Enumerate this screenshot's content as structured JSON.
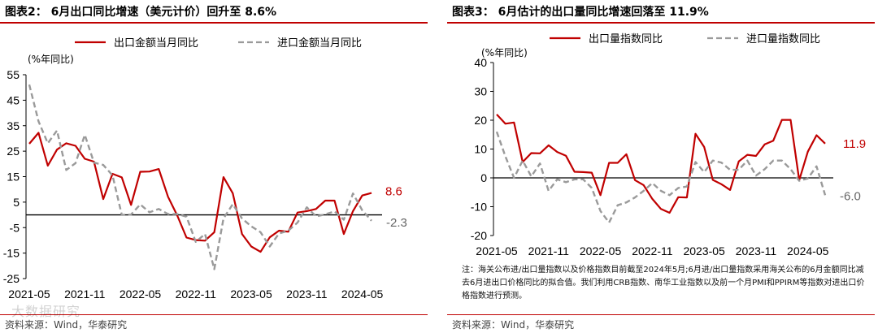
{
  "left": {
    "title": "图表2：  6月出口同比增速（美元计价）回升至 8.6%",
    "unit": "(%年同比)",
    "source": "资料来源：Wind，华泰研究",
    "chart_data": {
      "type": "line",
      "ylim": [
        -25,
        55
      ],
      "yticks": [
        -25,
        -15,
        -5,
        5,
        15,
        25,
        35,
        45,
        55
      ],
      "xticks": [
        "2021-05",
        "2021-11",
        "2022-05",
        "2022-11",
        "2023-05",
        "2023-11",
        "2024-05"
      ],
      "xtick_index": [
        0,
        6,
        12,
        18,
        24,
        30,
        36
      ],
      "legend_position": "top-center",
      "series": [
        {
          "name": "出口金额当月同比",
          "color": "#c00000",
          "dashed": false,
          "end_label": "8.6",
          "values": [
            27.9,
            32.2,
            19.3,
            25.6,
            28.1,
            27.1,
            22.0,
            20.9,
            6.2,
            16.1,
            14.7,
            3.9,
            16.9,
            17.0,
            18.0,
            7.1,
            -0.3,
            -8.9,
            -9.9,
            -10.1,
            -6.8,
            14.8,
            8.5,
            -7.5,
            -12.4,
            -14.5,
            -8.8,
            -6.2,
            -6.6,
            0.9,
            1.5,
            2.3,
            5.6,
            5.6,
            -7.5,
            1.5,
            7.6,
            8.6
          ]
        },
        {
          "name": "进口金额当月同比",
          "color": "#9a9a9a",
          "dashed": true,
          "end_label": "-2.3",
          "values": [
            51.1,
            36.7,
            28.1,
            33.1,
            17.6,
            20.3,
            31.4,
            20.5,
            19.6,
            15.5,
            0.0,
            0.1,
            4.1,
            1.0,
            2.3,
            0.3,
            0.3,
            -0.7,
            -10.6,
            -7.5,
            -21.3,
            -1.4,
            4.2,
            -1.4,
            -4.5,
            -6.8,
            -12.4,
            -7.3,
            -6.2,
            -3.0,
            3.0,
            -0.6,
            0.2,
            1.4,
            -1.9,
            8.4,
            1.8,
            -2.3
          ]
        }
      ]
    }
  },
  "right": {
    "title": "图表3：  6月估计的出口量同比增速回落至 11.9%",
    "unit": "(%年同比)",
    "source": "资料来源：Wind，华泰研究",
    "note": "注：海关公布进/出口量指数以及价格指数目前截至2024年5月;6月进/出口量指数采用海关公布的6月金额同比减去6月进出口价格同比的拟合值。我们利用CRB指数、南华工业指数以及前一个月PMI和PPIRM等指数对进出口价格指数进行预测。",
    "chart_data": {
      "type": "line",
      "ylim": [
        -20,
        40
      ],
      "yticks": [
        -20,
        -10,
        0,
        10,
        20,
        30,
        40
      ],
      "xticks": [
        "2021-05",
        "2021-11",
        "2022-05",
        "2022-11",
        "2023-05",
        "2023-11",
        "2024-05"
      ],
      "xtick_index": [
        0,
        6,
        12,
        18,
        24,
        30,
        36
      ],
      "legend_position": "top-center",
      "series": [
        {
          "name": "出口量指数同比",
          "color": "#c00000",
          "dashed": false,
          "end_label": "11.9",
          "values": [
            22.0,
            18.8,
            19.2,
            5.5,
            8.6,
            8.5,
            11.3,
            9.0,
            7.7,
            2.1,
            2.0,
            1.8,
            -6.0,
            5.2,
            5.2,
            8.2,
            -0.8,
            -2.5,
            -7.3,
            -10.8,
            -12.1,
            -6.7,
            -6.8,
            15.3,
            10.7,
            -0.7,
            -2.2,
            -4.2,
            5.7,
            8.0,
            7.6,
            11.6,
            12.9,
            20.1,
            20.1,
            -0.8,
            9.1,
            14.8,
            11.9
          ]
        },
        {
          "name": "进口量指数同比",
          "color": "#9a9a9a",
          "dashed": true,
          "end_label": "-6.0",
          "values": [
            16.0,
            7.5,
            0.0,
            6.0,
            0.5,
            5.0,
            -4.5,
            -0.5,
            -1.5,
            -0.5,
            -0.5,
            -3.5,
            -11.5,
            -15.5,
            -9.5,
            -8.5,
            -6.8,
            -4.5,
            -1.8,
            -4.5,
            -6.0,
            -3.5,
            -3.0,
            5.5,
            2.0,
            6.0,
            5.3,
            2.8,
            2.8,
            6.0,
            0.8,
            3.0,
            6.0,
            6.0,
            3.0,
            -1.0,
            -0.2,
            4.0,
            -6.0
          ]
        }
      ]
    }
  },
  "watermark": "大数据研究"
}
